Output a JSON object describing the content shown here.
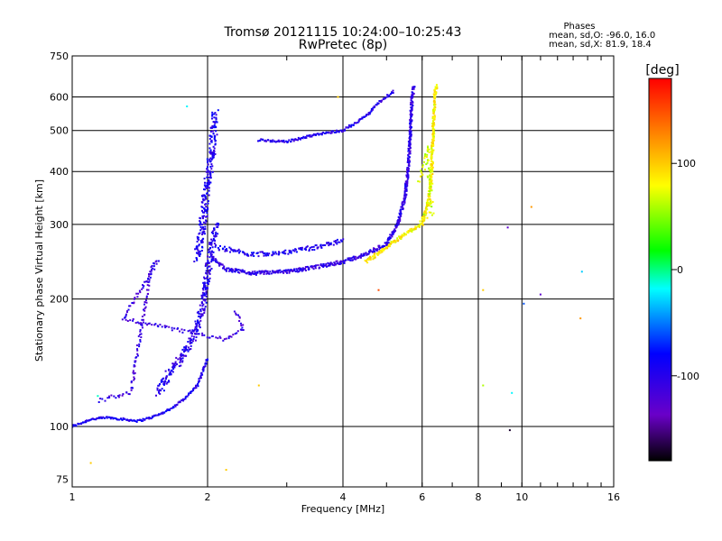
{
  "chart_data": {
    "type": "scatter",
    "title": "Tromsø 20121115 10:24:00–10:25:43",
    "subtitle": "RwPretec (8p)",
    "xlabel": "Frequency [MHz]",
    "ylabel": "Stationary phase Virtual Height [km]",
    "x_scale": "log",
    "y_scale": "log",
    "xlim": [
      1,
      16
    ],
    "ylim": [
      72,
      750
    ],
    "x_ticks": [
      1,
      2,
      4,
      6,
      8,
      10,
      16
    ],
    "x_tick_labels": [
      "1",
      "2",
      "4",
      "6",
      "8",
      "10",
      "16"
    ],
    "y_ticks": [
      75,
      100,
      200,
      300,
      400,
      500,
      600,
      750
    ],
    "y_tick_labels": [
      "75",
      "100",
      "200",
      "300",
      "400",
      "500",
      "600",
      "750"
    ],
    "grid": true,
    "info": {
      "heading": "Phases",
      "line1": "mean, sd,O: -96.0, 16.0",
      "line2": "mean, sd,X:  81.9, 18.4"
    },
    "colorbar": {
      "label": "[deg]",
      "range": [
        -180,
        180
      ],
      "ticks": [
        100,
        0,
        -100
      ],
      "tick_labels": [
        "100",
        "0",
        "-100"
      ],
      "location": "right"
    },
    "traces": [
      {
        "phase": -95,
        "density": 2,
        "jitter": 0.012,
        "points": [
          [
            1.0,
            100
          ],
          [
            1.05,
            102
          ],
          [
            1.1,
            104
          ],
          [
            1.2,
            105
          ],
          [
            1.3,
            104
          ],
          [
            1.4,
            103
          ],
          [
            1.5,
            105
          ],
          [
            1.6,
            108
          ],
          [
            1.7,
            112
          ],
          [
            1.8,
            118
          ],
          [
            1.9,
            125
          ],
          [
            1.95,
            135
          ],
          [
            2.0,
            145
          ]
        ]
      },
      {
        "phase": -100,
        "density": 3,
        "jitter": 0.05,
        "points": [
          [
            1.55,
            120
          ],
          [
            1.65,
            135
          ],
          [
            1.75,
            145
          ],
          [
            1.85,
            160
          ],
          [
            1.95,
            190
          ],
          [
            2.0,
            230
          ],
          [
            2.05,
            270
          ],
          [
            2.1,
            300
          ]
        ]
      },
      {
        "phase": -95,
        "density": 3,
        "jitter": 0.06,
        "points": [
          [
            1.9,
            250
          ],
          [
            1.95,
            300
          ],
          [
            2.0,
            380
          ],
          [
            2.05,
            450
          ],
          [
            2.08,
            550
          ]
        ]
      },
      {
        "phase": -105,
        "density": 3,
        "jitter": 0.02,
        "points": [
          [
            2.05,
            250
          ],
          [
            2.2,
            235
          ],
          [
            2.5,
            230
          ],
          [
            3.0,
            232
          ],
          [
            3.5,
            238
          ],
          [
            4.0,
            245
          ],
          [
            4.5,
            255
          ],
          [
            5.0,
            270
          ],
          [
            5.3,
            300
          ],
          [
            5.5,
            350
          ],
          [
            5.6,
            420
          ],
          [
            5.65,
            500
          ],
          [
            5.7,
            600
          ],
          [
            5.75,
            640
          ]
        ]
      },
      {
        "phase": -95,
        "density": 2,
        "jitter": 0.025,
        "points": [
          [
            2.1,
            265
          ],
          [
            2.5,
            255
          ],
          [
            3.0,
            258
          ],
          [
            3.5,
            265
          ],
          [
            4.0,
            275
          ]
        ]
      },
      {
        "phase": -100,
        "density": 2,
        "jitter": 0.012,
        "points": [
          [
            2.6,
            475
          ],
          [
            3.0,
            470
          ],
          [
            3.5,
            490
          ],
          [
            4.0,
            500
          ],
          [
            4.5,
            540
          ],
          [
            4.8,
            580
          ],
          [
            5.2,
            620
          ]
        ]
      },
      {
        "phase": 85,
        "density": 3,
        "jitter": 0.02,
        "points": [
          [
            4.5,
            245
          ],
          [
            5.0,
            265
          ],
          [
            5.5,
            285
          ],
          [
            6.0,
            300
          ],
          [
            6.2,
            340
          ],
          [
            6.3,
            400
          ],
          [
            6.35,
            500
          ],
          [
            6.4,
            600
          ],
          [
            6.45,
            640
          ]
        ]
      },
      {
        "phase": -110,
        "density": 1,
        "jitter": 0.02,
        "points": [
          [
            1.15,
            115
          ],
          [
            1.25,
            118
          ],
          [
            1.35,
            120
          ],
          [
            1.5,
            240
          ],
          [
            1.55,
            245
          ],
          [
            1.3,
            180
          ],
          [
            2.2,
            160
          ],
          [
            2.4,
            170
          ],
          [
            2.3,
            190
          ]
        ]
      },
      {
        "phase": 70,
        "density": 1,
        "jitter": 0.04,
        "points": [
          [
            5.9,
            380
          ],
          [
            6.1,
            420
          ],
          [
            6.2,
            460
          ],
          [
            6.3,
            320
          ],
          [
            5.8,
            300
          ]
        ]
      }
    ],
    "scatter_points": [
      {
        "x": 1.14,
        "y": 118,
        "phase": -10
      },
      {
        "x": 1.1,
        "y": 82,
        "phase": 100
      },
      {
        "x": 1.8,
        "y": 570,
        "phase": -20
      },
      {
        "x": 2.2,
        "y": 79,
        "phase": 100
      },
      {
        "x": 2.6,
        "y": 125,
        "phase": 100
      },
      {
        "x": 4.8,
        "y": 210,
        "phase": 150
      },
      {
        "x": 8.2,
        "y": 210,
        "phase": 100
      },
      {
        "x": 8.2,
        "y": 125,
        "phase": 60
      },
      {
        "x": 9.3,
        "y": 295,
        "phase": -130
      },
      {
        "x": 9.5,
        "y": 120,
        "phase": -20
      },
      {
        "x": 9.4,
        "y": 98,
        "phase": -170
      },
      {
        "x": 10.1,
        "y": 195,
        "phase": -60
      },
      {
        "x": 10.5,
        "y": 330,
        "phase": 120
      },
      {
        "x": 11.0,
        "y": 205,
        "phase": -130
      },
      {
        "x": 13.5,
        "y": 180,
        "phase": 120
      },
      {
        "x": 13.6,
        "y": 232,
        "phase": -30
      },
      {
        "x": 3.9,
        "y": 600,
        "phase": 100
      }
    ]
  }
}
